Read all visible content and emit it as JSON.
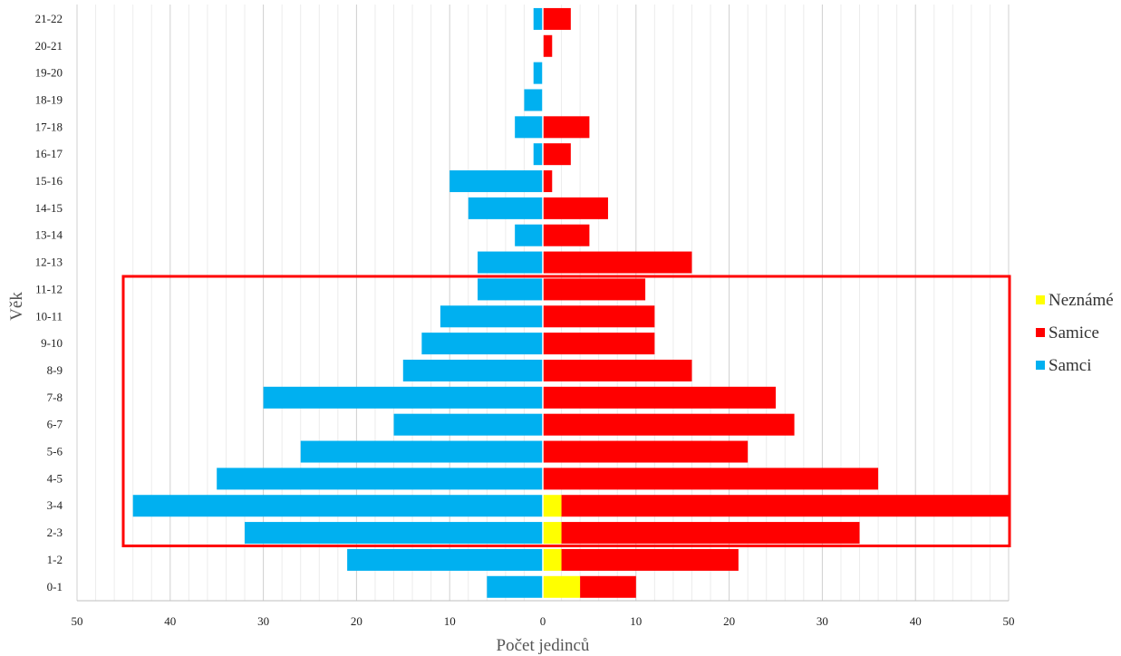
{
  "chart_data": {
    "type": "bar",
    "orientation": "horizontal",
    "layout": "population-pyramid",
    "categories": [
      "0-1",
      "1-2",
      "2-3",
      "3-4",
      "4-5",
      "5-6",
      "6-7",
      "7-8",
      "8-9",
      "9-10",
      "10-11",
      "11-12",
      "12-13",
      "13-14",
      "14-15",
      "15-16",
      "16-17",
      "17-18",
      "18-19",
      "19-20",
      "20-21",
      "21-22"
    ],
    "series": [
      {
        "name": "Samci",
        "side": "left",
        "color": "#00B0F0",
        "values": [
          6,
          21,
          32,
          44,
          35,
          26,
          16,
          30,
          15,
          13,
          11,
          7,
          7,
          3,
          8,
          10,
          1,
          3,
          2,
          1,
          0,
          1
        ]
      },
      {
        "name": "Neznámé",
        "side": "right",
        "color": "#FFFF00",
        "values": [
          4,
          2,
          2,
          2,
          0,
          0,
          0,
          0,
          0,
          0,
          0,
          0,
          0,
          0,
          0,
          0,
          0,
          0,
          0,
          0,
          0,
          0
        ]
      },
      {
        "name": "Samice",
        "side": "right",
        "color": "#FF0000",
        "stacked_on": "Neznámé",
        "values": [
          6,
          19,
          32,
          48,
          36,
          22,
          27,
          25,
          16,
          12,
          12,
          11,
          16,
          5,
          7,
          1,
          3,
          5,
          0,
          0,
          1,
          3
        ]
      }
    ],
    "xlabel": "Počet jedinců",
    "ylabel": "Věk",
    "xlim": [
      -50,
      50
    ],
    "x_ticks": [
      50,
      40,
      30,
      20,
      10,
      0,
      10,
      20,
      30,
      40,
      50
    ],
    "grid": true,
    "legend": [
      "Neznámé",
      "Samice",
      "Samci"
    ],
    "legend_position": "right",
    "highlight": {
      "from_category": "2-3",
      "to_category": "11-12",
      "color": "#FF0000"
    }
  }
}
